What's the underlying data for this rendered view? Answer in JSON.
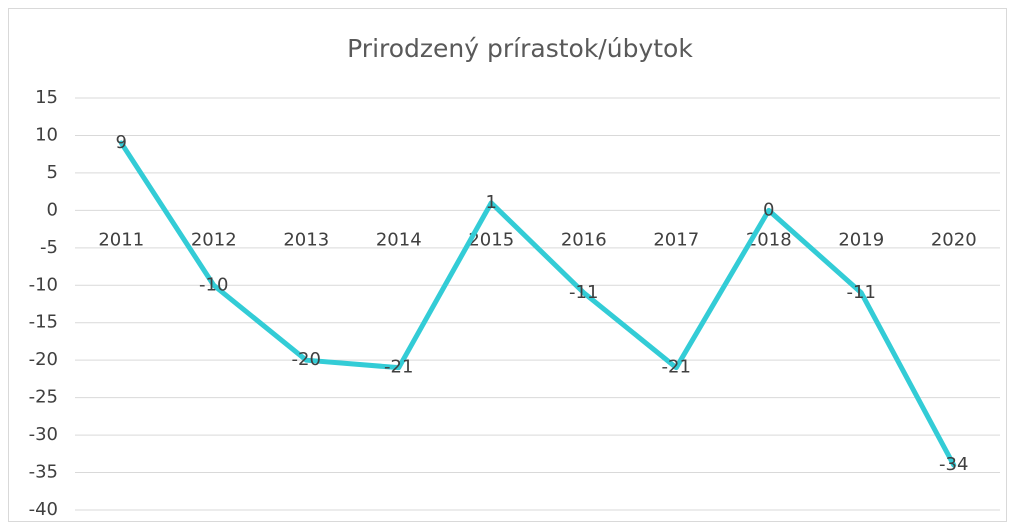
{
  "chart_data": {
    "type": "line",
    "title": "Prirodzený prírastok/úbytok",
    "categories": [
      "2011",
      "2012",
      "2013",
      "2014",
      "2015",
      "2016",
      "2017",
      "2018",
      "2019",
      "2020"
    ],
    "series": [
      {
        "name": "Prirodzený prírastok/úbytok",
        "color": "#33CCD6",
        "values": [
          9,
          -10,
          -20,
          -21,
          1,
          -11,
          -21,
          0,
          -11,
          -34
        ]
      }
    ],
    "ylim": [
      -40,
      15
    ],
    "yticks": [
      15,
      10,
      5,
      0,
      -5,
      -10,
      -15,
      -20,
      -25,
      -30,
      -35,
      -40
    ],
    "grid": true,
    "data_labels": true
  }
}
